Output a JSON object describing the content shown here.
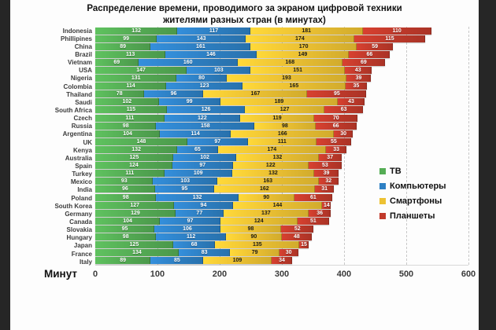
{
  "chart_data": {
    "type": "bar",
    "orientation": "horizontal-stacked",
    "title_line1": "Распределение времени, проводимого за экраном цифровой техники",
    "title_line2": "жителями разных стран (в минутах)",
    "xlabel": "Минут",
    "xlim": [
      0,
      600
    ],
    "xticks": [
      0,
      100,
      200,
      300,
      400,
      500,
      600
    ],
    "grid": "vertical-dashed",
    "legend_position": "right-middle",
    "categories": [
      "Indonesia",
      "Phillipines",
      "China",
      "Brazil",
      "Vietnam",
      "USA",
      "Nigeria",
      "Colombia",
      "Thailand",
      "Saudi",
      "South Africa",
      "Czech",
      "Russia",
      "Argentina",
      "UK",
      "Kenya",
      "Australia",
      "Spain",
      "Turkey",
      "Mexico",
      "India",
      "Poland",
      "South Korea",
      "Germany",
      "Canada",
      "Slovakia",
      "Hungary",
      "Japan",
      "France",
      "Italy"
    ],
    "series": [
      {
        "key": "tv",
        "name": "ТВ",
        "color": "#55ad55",
        "label_color": "light",
        "values": [
          132,
          99,
          89,
          113,
          69,
          147,
          131,
          114,
          78,
          102,
          115,
          111,
          98,
          104,
          148,
          132,
          125,
          124,
          111,
          93,
          96,
          98,
          127,
          129,
          104,
          95,
          98,
          125,
          134,
          89
        ]
      },
      {
        "key": "computers",
        "name": "Компьютеры",
        "color": "#2e80c4",
        "label_color": "light",
        "values": [
          117,
          143,
          161,
          146,
          160,
          103,
          80,
          123,
          96,
          99,
          126,
          122,
          158,
          114,
          97,
          65,
          102,
          97,
          109,
          103,
          95,
          132,
          94,
          77,
          97,
          106,
          112,
          68,
          83,
          85
        ]
      },
      {
        "key": "smartphones",
        "name": "Смартфоны",
        "color": "#edc233",
        "label_color": "dark",
        "values": [
          181,
          174,
          170,
          149,
          168,
          151,
          193,
          165,
          167,
          189,
          127,
          119,
          98,
          166,
          111,
          174,
          132,
          122,
          132,
          163,
          162,
          90,
          144,
          137,
          124,
          98,
          90,
          135,
          79,
          109
        ]
      },
      {
        "key": "tablets",
        "name": "Планшеты",
        "color": "#c13a2b",
        "label_color": "light",
        "values": [
          110,
          115,
          59,
          66,
          69,
          43,
          39,
          35,
          95,
          43,
          63,
          70,
          66,
          30,
          55,
          33,
          37,
          53,
          39,
          32,
          31,
          61,
          14,
          36,
          51,
          52,
          48,
          15,
          30,
          34
        ]
      }
    ]
  }
}
